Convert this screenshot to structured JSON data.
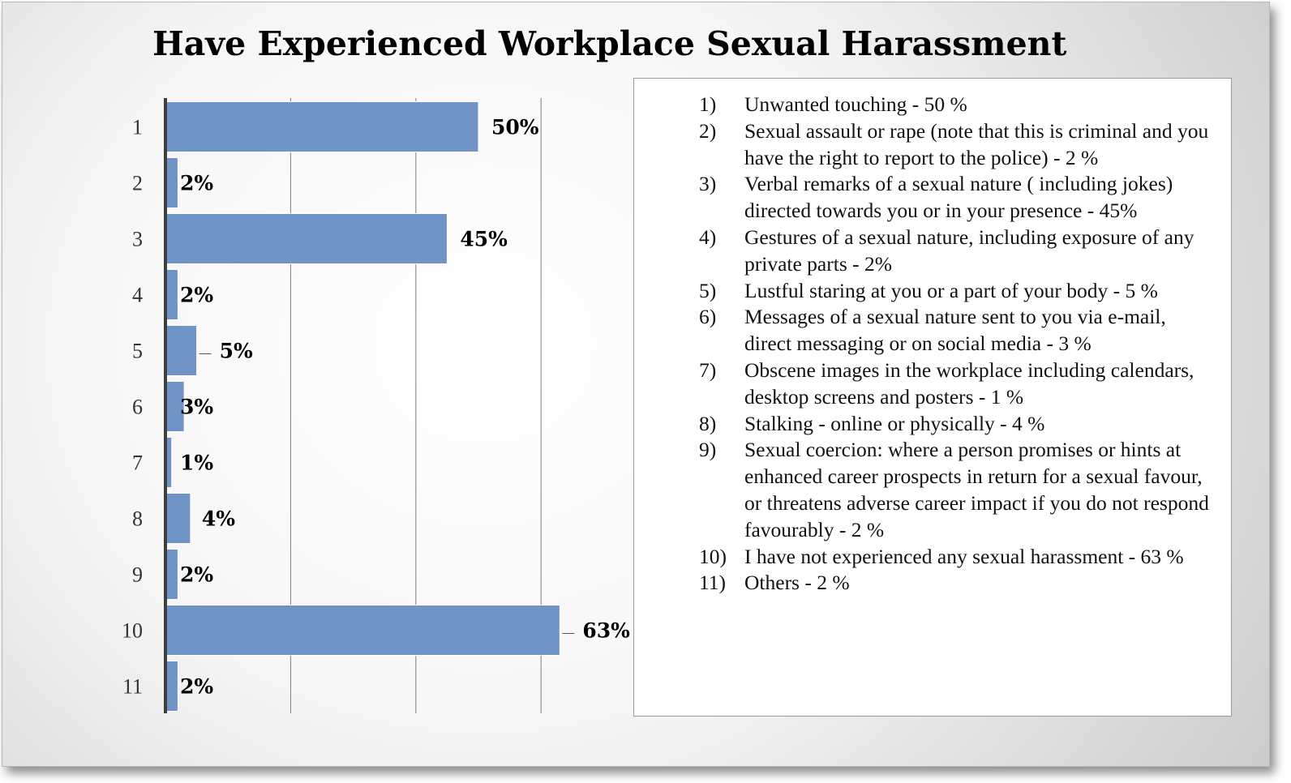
{
  "chart_data": {
    "type": "bar",
    "orientation": "horizontal",
    "title": "Have Experienced Workplace Sexual Harassment",
    "xlabel": "",
    "ylabel": "",
    "categories": [
      "1",
      "2",
      "3",
      "4",
      "5",
      "6",
      "7",
      "8",
      "9",
      "10",
      "11"
    ],
    "values": [
      50,
      2,
      45,
      2,
      5,
      3,
      1,
      4,
      2,
      63,
      2
    ],
    "data_labels": [
      "50%",
      "2%",
      "45%",
      "2%",
      "5%",
      "3%",
      "1%",
      "4%",
      "2%",
      "63%",
      "2%"
    ],
    "xlim": [
      0,
      70
    ],
    "x_gridlines": [
      0,
      20,
      40,
      60
    ],
    "grid": true,
    "colors": {
      "bar": "#7094c5",
      "gridline": "#7f7f7f",
      "axis": "#3f3f3f"
    },
    "legend_placement": "right"
  },
  "legend": {
    "items": [
      {
        "num": "1)",
        "text": "Unwanted touching - 50 %"
      },
      {
        "num": "2)",
        "text": "Sexual assault or rape (note that this is criminal and you have the right to report to the police) - 2 %"
      },
      {
        "num": "3)",
        "text": "Verbal remarks of a sexual nature ( including jokes) directed towards you or in your presence - 45%"
      },
      {
        "num": "4)",
        "text": "Gestures of a sexual nature, including exposure of any private parts - 2%"
      },
      {
        "num": "5)",
        "text": "Lustful staring at you or a part of your body - 5 %"
      },
      {
        "num": "6)",
        "text": "Messages of a sexual nature sent to you via e-mail, direct messaging or on social media - 3 %"
      },
      {
        "num": "7)",
        "text": "Obscene images in the workplace including calendars, desktop screens and posters - 1 %"
      },
      {
        "num": "8)",
        "text": "Stalking - online or physically  - 4 %"
      },
      {
        "num": "9)",
        "text": "Sexual coercion: where a person promises or hints at enhanced career prospects in return for a sexual favour,  or threatens adverse career impact if you do not respond favourably - 2 %"
      },
      {
        "num": "10)",
        "text": "I have not experienced any sexual harassment - 63 %"
      },
      {
        "num": "11)",
        "text": "Others - 2 %"
      }
    ]
  }
}
